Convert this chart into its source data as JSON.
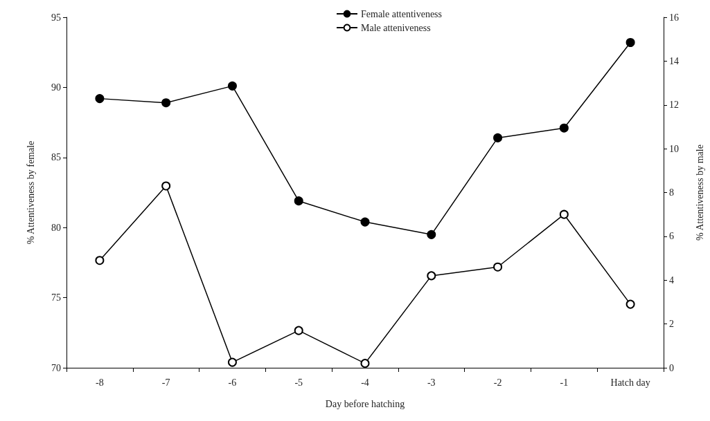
{
  "chart_data": {
    "type": "line",
    "xlabel": "Day before hatching",
    "ylabel": "% Attentiveness by female",
    "y2label": "% Attentiveness by male",
    "categories": [
      "-8",
      "-7",
      "-6",
      "-5",
      "-4",
      "-3",
      "-2",
      "-1",
      "Hatch day"
    ],
    "series": [
      {
        "name": "Female attentiveness",
        "color": "#000000",
        "values": [
          89.2,
          88.9,
          90.1,
          81.9,
          80.4,
          79.5,
          86.4,
          87.1,
          93.2
        ]
      },
      {
        "name": "Male atteniveness",
        "color": "#000000",
        "axis": "y2",
        "values": [
          4.9,
          8.3,
          0.25,
          1.7,
          0.2,
          4.2,
          4.6,
          7.0,
          2.9
        ]
      }
    ],
    "ylim": [
      70,
      95
    ],
    "yticks": [
      70,
      75,
      80,
      85,
      90,
      95
    ],
    "y2lim": [
      0,
      16
    ],
    "y2ticks": [
      0,
      2,
      4,
      6,
      8,
      10,
      12,
      14,
      16
    ],
    "legend": "top",
    "marker": "circle",
    "line_style": "solid",
    "grid": false
  }
}
